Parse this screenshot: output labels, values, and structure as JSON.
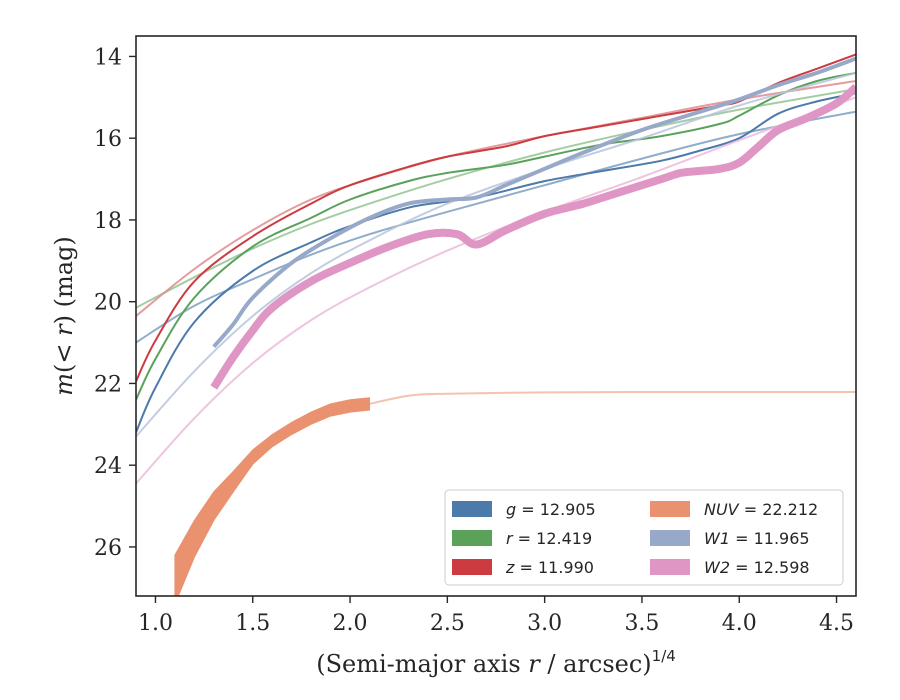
{
  "chart_data": {
    "type": "line",
    "xlabel": "(Semi-major axis r / arcsec)^{1/4}",
    "xlabel_parts": {
      "prefix": "(Semi-major axis ",
      "var": "r",
      "mid": " / arcsec)",
      "sup": "1/4"
    },
    "ylabel": "m(< r) (mag)",
    "ylabel_parts": {
      "m": "m",
      "open": "(",
      "lt": "<",
      "r": "r",
      "close": ")",
      "unit": "(mag)"
    },
    "xlim": [
      0.9,
      4.6
    ],
    "ylim": [
      27.2,
      13.5
    ],
    "y_inverted": true,
    "xticks": [
      "1.0",
      "1.5",
      "2.0",
      "2.5",
      "3.0",
      "3.5",
      "4.0",
      "4.5"
    ],
    "xtick_values": [
      1.0,
      1.5,
      2.0,
      2.5,
      3.0,
      3.5,
      4.0,
      4.5
    ],
    "yticks": [
      "14",
      "16",
      "18",
      "20",
      "22",
      "24",
      "26"
    ],
    "ytick_values": [
      14,
      16,
      18,
      20,
      22,
      24,
      26
    ],
    "grid": false,
    "legend_position": "lower-right",
    "legend": [
      {
        "band": "g",
        "eq": "= 12.905",
        "color": "#4c7aaa"
      },
      {
        "band": "r",
        "eq": "= 12.419",
        "color": "#5aa25a"
      },
      {
        "band": "z",
        "eq": "= 11.990",
        "color": "#cc3b40"
      },
      {
        "band": "NUV",
        "eq": "= 22.212",
        "color": "#ea9270"
      },
      {
        "band": "W1",
        "eq": "= 11.965",
        "color": "#97a8c9"
      },
      {
        "band": "W2",
        "eq": "= 12.598",
        "color": "#df96c5"
      }
    ],
    "series": [
      {
        "name": "g",
        "kind": "model",
        "color": "#7d9fc2",
        "x": [
          0.9,
          1.2,
          1.5,
          1.8,
          2.1,
          2.5,
          3.0,
          3.5,
          4.0,
          4.6
        ],
        "y": [
          21.0,
          20.1,
          19.45,
          18.85,
          18.35,
          17.8,
          17.15,
          16.5,
          15.9,
          15.35
        ]
      },
      {
        "name": "g",
        "kind": "data",
        "color": "#4c7aaa",
        "x": [
          0.9,
          1.0,
          1.2,
          1.5,
          1.8,
          2.0,
          2.3,
          2.5,
          2.7,
          3.0,
          3.3,
          3.6,
          3.8,
          4.0,
          4.2,
          4.4,
          4.6
        ],
        "y": [
          23.2,
          22.1,
          20.5,
          19.25,
          18.55,
          18.15,
          17.7,
          17.55,
          17.4,
          17.05,
          16.8,
          16.55,
          16.3,
          16.0,
          15.4,
          15.1,
          14.9
        ]
      },
      {
        "name": "r",
        "kind": "model",
        "color": "#94c494",
        "x": [
          0.9,
          1.2,
          1.5,
          1.8,
          2.1,
          2.5,
          3.0,
          3.5,
          4.0,
          4.6
        ],
        "y": [
          20.15,
          19.4,
          18.7,
          18.1,
          17.6,
          17.0,
          16.35,
          15.8,
          15.3,
          14.8
        ]
      },
      {
        "name": "r",
        "kind": "data",
        "color": "#5aa25a",
        "x": [
          0.9,
          1.0,
          1.2,
          1.5,
          1.8,
          2.0,
          2.3,
          2.5,
          2.8,
          3.0,
          3.3,
          3.6,
          3.9,
          4.0,
          4.2,
          4.4,
          4.6
        ],
        "y": [
          22.4,
          21.4,
          19.9,
          18.65,
          17.95,
          17.5,
          17.05,
          16.85,
          16.65,
          16.45,
          16.15,
          15.95,
          15.65,
          15.45,
          14.95,
          14.6,
          14.4
        ]
      },
      {
        "name": "z",
        "kind": "model",
        "color": "#e08a8c",
        "x": [
          0.9,
          1.2,
          1.5,
          1.8,
          2.1,
          2.5,
          3.0,
          3.5,
          4.0,
          4.6
        ],
        "y": [
          20.35,
          19.2,
          18.25,
          17.5,
          17.0,
          16.45,
          15.95,
          15.5,
          15.05,
          14.6
        ]
      },
      {
        "name": "z",
        "kind": "data",
        "color": "#cc3b40",
        "x": [
          0.9,
          1.0,
          1.2,
          1.5,
          1.8,
          2.0,
          2.3,
          2.5,
          2.8,
          3.0,
          3.3,
          3.6,
          3.9,
          4.0,
          4.2,
          4.4,
          4.6
        ],
        "y": [
          21.95,
          20.95,
          19.5,
          18.4,
          17.6,
          17.15,
          16.7,
          16.45,
          16.2,
          15.95,
          15.7,
          15.45,
          15.2,
          15.1,
          14.65,
          14.3,
          13.95
        ]
      },
      {
        "name": "NUV",
        "kind": "model",
        "color": "#f2b9a2",
        "x": [
          2.1,
          2.3,
          2.5,
          3.0,
          3.5,
          4.0,
          4.6
        ],
        "y": [
          22.5,
          22.3,
          22.25,
          22.22,
          22.21,
          22.21,
          22.21
        ]
      },
      {
        "name": "NUV",
        "kind": "band",
        "color": "#ea9270",
        "x": [
          1.1,
          1.2,
          1.3,
          1.4,
          1.5,
          1.6,
          1.7,
          1.8,
          1.9,
          2.0,
          2.1
        ],
        "y": [
          26.8,
          25.8,
          25.0,
          24.4,
          23.8,
          23.4,
          23.1,
          22.85,
          22.65,
          22.55,
          22.5
        ],
        "width": [
          1.2,
          0.9,
          0.7,
          0.5,
          0.35,
          0.3,
          0.3,
          0.3,
          0.3,
          0.3,
          0.3
        ]
      },
      {
        "name": "W1",
        "kind": "model",
        "color": "#b7c4da",
        "x": [
          0.9,
          1.2,
          1.5,
          1.8,
          2.1,
          2.5,
          3.0,
          3.5,
          4.0,
          4.6
        ],
        "y": [
          23.3,
          21.7,
          20.35,
          19.3,
          18.5,
          17.6,
          16.75,
          16.0,
          15.2,
          14.4
        ]
      },
      {
        "name": "W1",
        "kind": "data",
        "color": "#97a8c9",
        "x": [
          1.3,
          1.4,
          1.5,
          1.7,
          1.9,
          2.1,
          2.3,
          2.5,
          2.65,
          2.8,
          3.0,
          3.2,
          3.5,
          3.8,
          4.0,
          4.2,
          4.4,
          4.6
        ],
        "y": [
          21.1,
          20.55,
          19.9,
          19.05,
          18.45,
          17.95,
          17.6,
          17.5,
          17.45,
          17.15,
          16.75,
          16.35,
          15.8,
          15.35,
          15.05,
          14.7,
          14.4,
          14.05
        ]
      },
      {
        "name": "W2",
        "kind": "model",
        "color": "#ecbadb",
        "x": [
          0.9,
          1.2,
          1.5,
          1.8,
          2.1,
          2.5,
          3.0,
          3.5,
          4.0,
          4.6
        ],
        "y": [
          24.45,
          22.85,
          21.5,
          20.45,
          19.65,
          18.75,
          17.8,
          16.95,
          16.05,
          15.0
        ]
      },
      {
        "name": "W2",
        "kind": "data",
        "color": "#df96c5",
        "x": [
          1.3,
          1.4,
          1.5,
          1.6,
          1.8,
          2.0,
          2.2,
          2.4,
          2.55,
          2.65,
          2.8,
          3.0,
          3.2,
          3.4,
          3.6,
          3.7,
          3.8,
          3.9,
          4.0,
          4.1,
          4.2,
          4.35,
          4.5,
          4.6
        ],
        "y": [
          22.1,
          21.35,
          20.7,
          20.15,
          19.5,
          19.05,
          18.65,
          18.35,
          18.35,
          18.6,
          18.25,
          17.85,
          17.6,
          17.3,
          17.0,
          16.85,
          16.8,
          16.75,
          16.6,
          16.2,
          15.8,
          15.5,
          15.15,
          14.75
        ]
      }
    ]
  }
}
